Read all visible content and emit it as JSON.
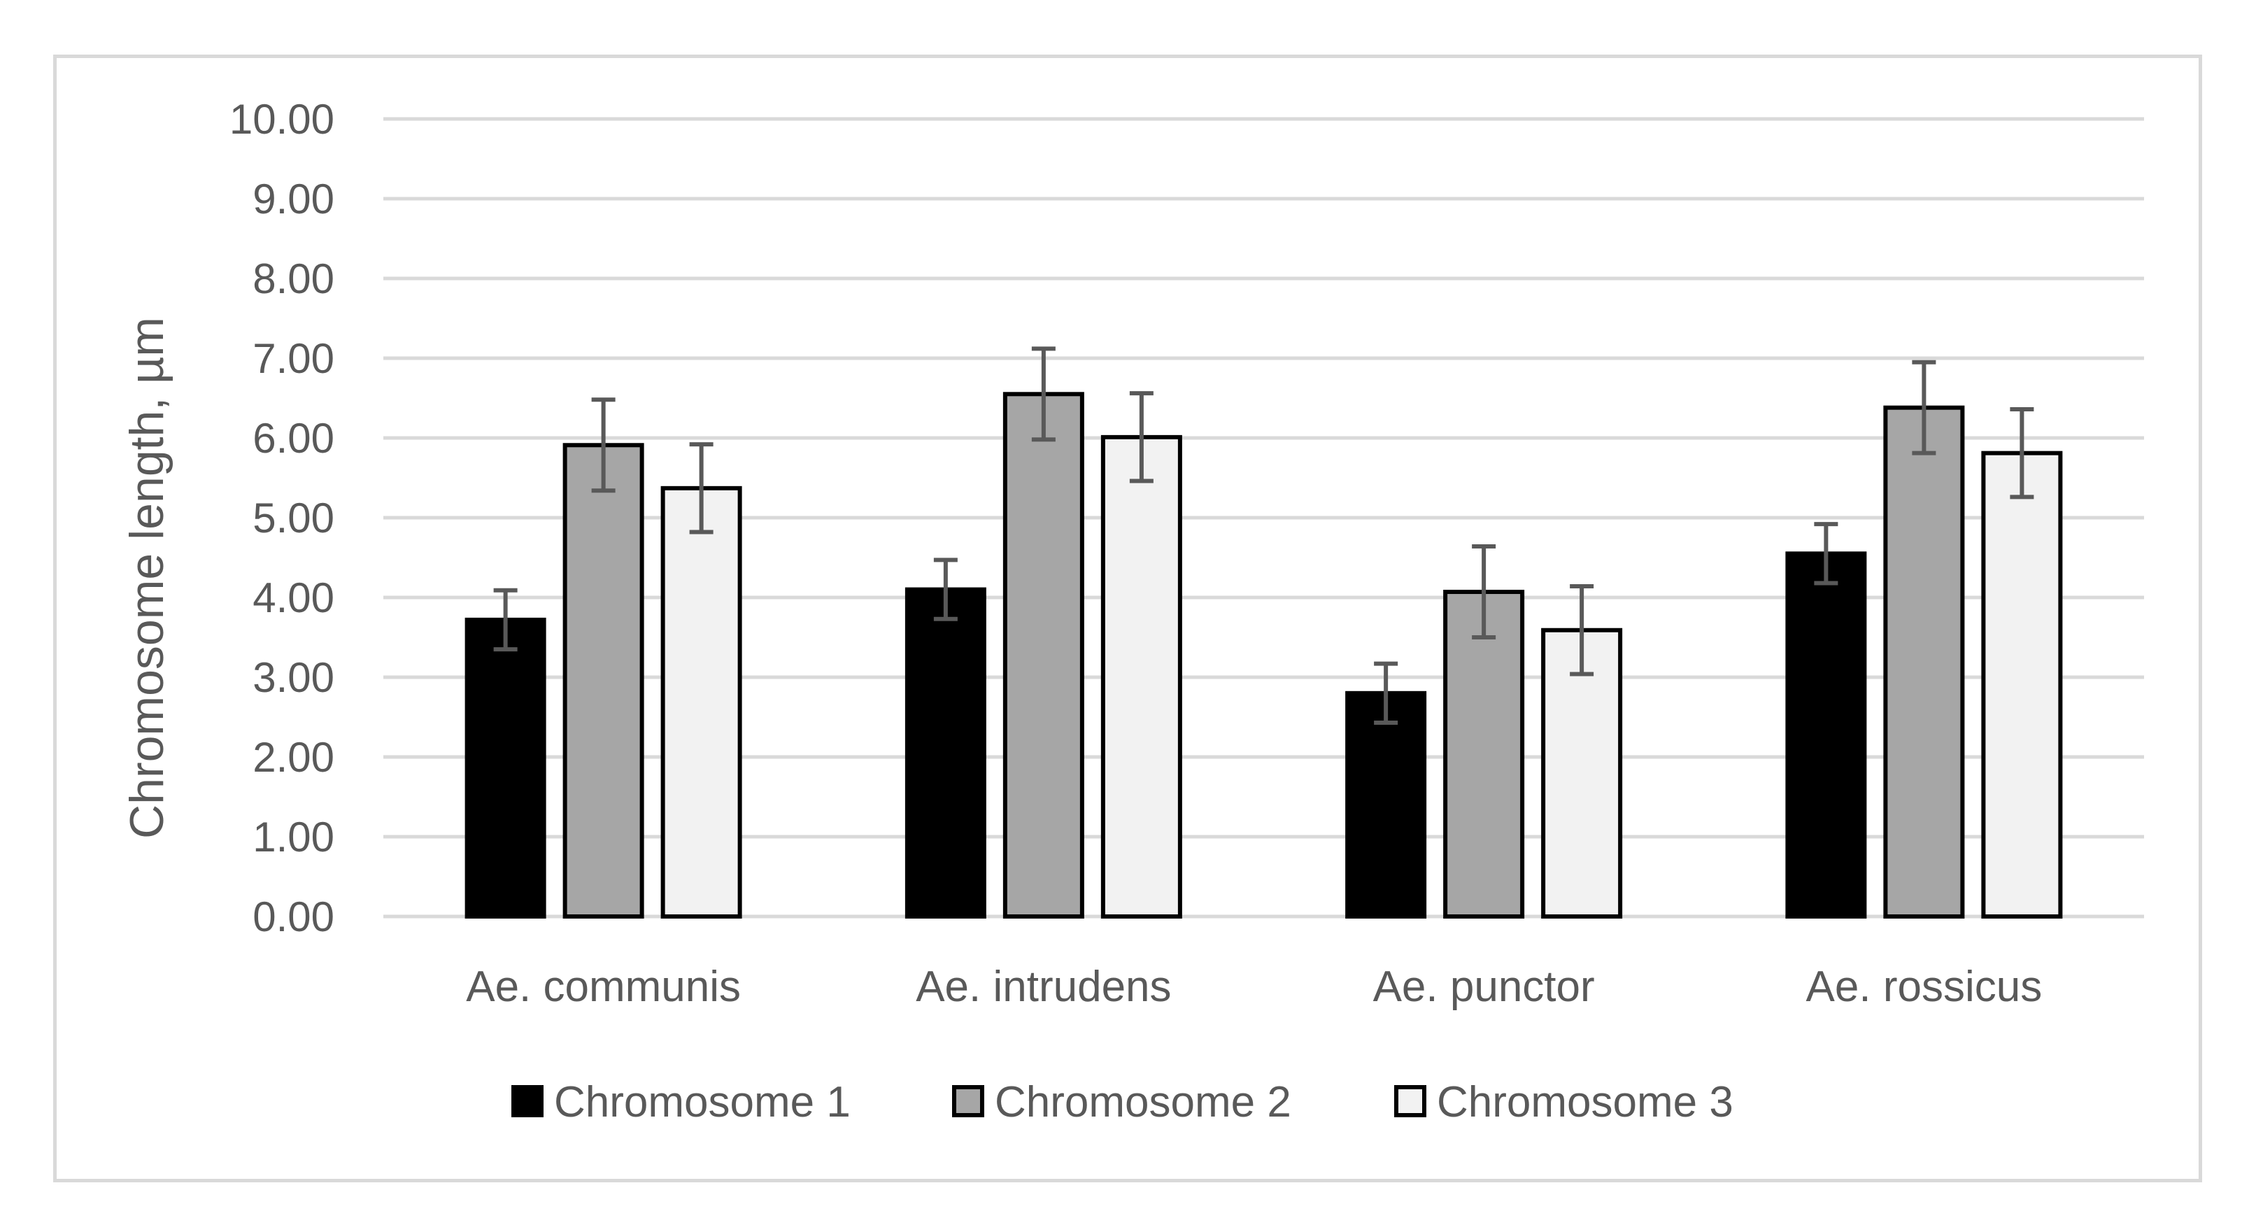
{
  "chart_data": {
    "type": "bar",
    "title": "",
    "xlabel": "",
    "ylabel": "Chromosome length, µm",
    "categories": [
      "Ae. communis",
      "Ae. intrudens",
      "Ae. punctor",
      "Ae. rossicus"
    ],
    "series": [
      {
        "name": "Chromosome 1",
        "color": "#000000",
        "values": [
          3.72,
          4.1,
          2.8,
          4.55
        ],
        "errors": [
          0.37,
          0.37,
          0.37,
          0.37
        ]
      },
      {
        "name": "Chromosome 2",
        "color": "#a6a6a6",
        "values": [
          5.91,
          6.55,
          4.07,
          6.38
        ],
        "errors": [
          0.57,
          0.57,
          0.57,
          0.57
        ]
      },
      {
        "name": "Chromosome 3",
        "color": "#f2f2f2",
        "values": [
          5.37,
          6.01,
          3.59,
          5.81
        ],
        "errors": [
          0.55,
          0.55,
          0.55,
          0.55
        ]
      }
    ],
    "ylim": [
      0,
      10
    ],
    "yticks": [
      "0.00",
      "1.00",
      "2.00",
      "3.00",
      "4.00",
      "5.00",
      "6.00",
      "7.00",
      "8.00",
      "9.00",
      "10.00"
    ],
    "grid": true,
    "legend_position": "bottom",
    "gridline_color": "#d9d9d9",
    "bar_edge_color": "#000000",
    "error_bar_color": "#595959"
  }
}
